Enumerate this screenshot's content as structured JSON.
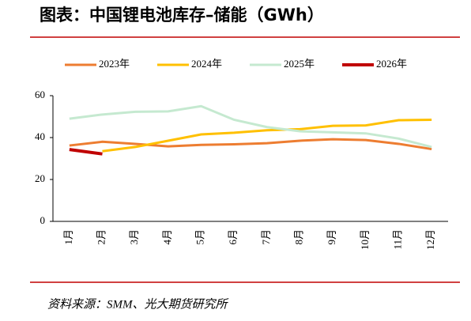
{
  "chart_data": {
    "type": "line",
    "title": "图表：中国锂电池库存–储能（GWh）",
    "source": "资料来源：SMM、光大期货研究所",
    "categories": [
      "1月",
      "2月",
      "3月",
      "4月",
      "5月",
      "6月",
      "7月",
      "8月",
      "9月",
      "10月",
      "11月",
      "12月"
    ],
    "series": [
      {
        "name": "2023年",
        "color": "#ed7d31",
        "values": [
          36.2,
          38,
          37,
          35.8,
          36.5,
          36.8,
          37.3,
          38.5,
          39.2,
          38.8,
          37,
          34.5
        ]
      },
      {
        "name": "2024年",
        "color": "#ffc000",
        "values": [
          null,
          33.5,
          35.5,
          38.5,
          41.5,
          42.3,
          43.5,
          44,
          45.6,
          45.8,
          48.3,
          48.5
        ]
      },
      {
        "name": "2025年",
        "color": "#c5e9d0",
        "values": [
          49,
          51,
          52.3,
          52.5,
          55,
          48.5,
          45,
          43,
          42.5,
          42,
          39.5,
          35.5
        ]
      },
      {
        "name": "2026年",
        "color": "#c00000",
        "values": [
          34.3,
          32.2,
          null,
          null,
          null,
          null,
          null,
          null,
          null,
          null,
          null,
          null
        ]
      }
    ],
    "ylim": [
      0,
      60
    ],
    "yticks": [
      0,
      20,
      40,
      60
    ],
    "grid": false
  }
}
